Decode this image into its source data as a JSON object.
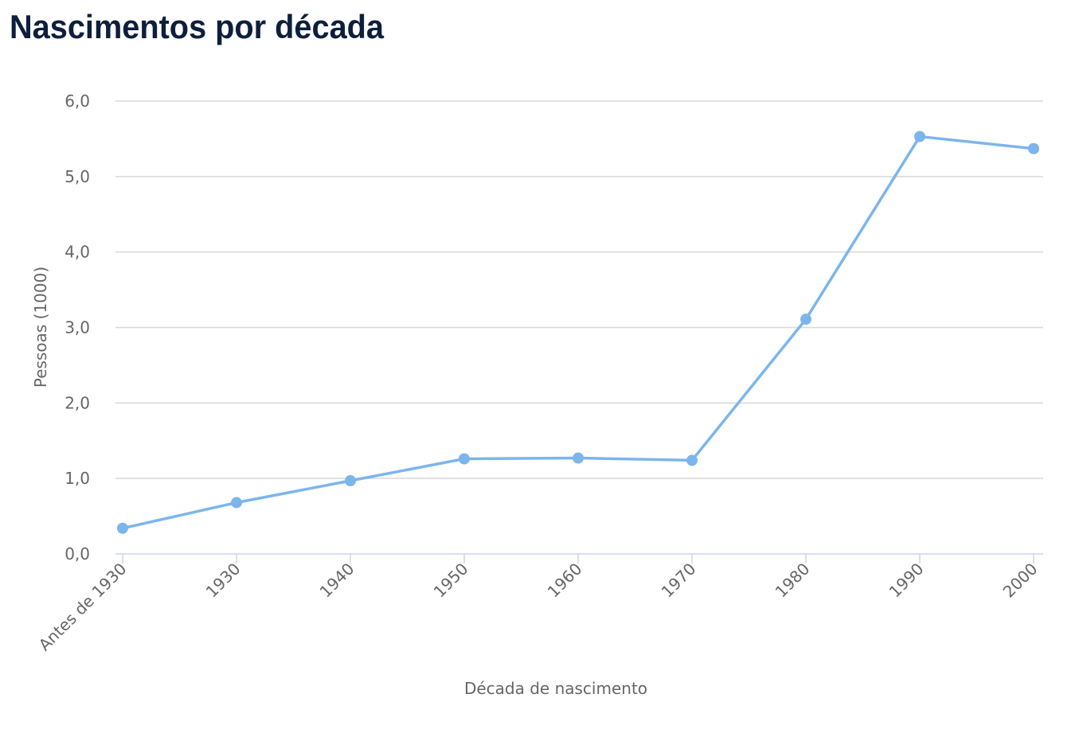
{
  "chart_data": {
    "type": "line",
    "title": "Nascimentos por década",
    "x_label": "Década de nascimento",
    "y_label": "Pessoas (1000)",
    "categories": [
      "Antes de 1930",
      "1930",
      "1940",
      "1950",
      "1960",
      "1970",
      "1980",
      "1990",
      "2000"
    ],
    "series": [
      {
        "name": "Pessoas (1000)",
        "color": "#7cb5ec",
        "values": [
          0.34,
          0.68,
          0.97,
          1.26,
          1.27,
          1.24,
          3.11,
          5.53,
          5.37
        ]
      }
    ],
    "ylim": [
      0,
      6
    ],
    "yticks": [
      {
        "value": 0,
        "label": "0,0"
      },
      {
        "value": 1,
        "label": "1,0"
      },
      {
        "value": 2,
        "label": "2,0"
      },
      {
        "value": 3,
        "label": "3,0"
      },
      {
        "value": 4,
        "label": "4,0"
      },
      {
        "value": 5,
        "label": "5,0"
      },
      {
        "value": 6,
        "label": "6,0"
      }
    ],
    "grid": true
  }
}
